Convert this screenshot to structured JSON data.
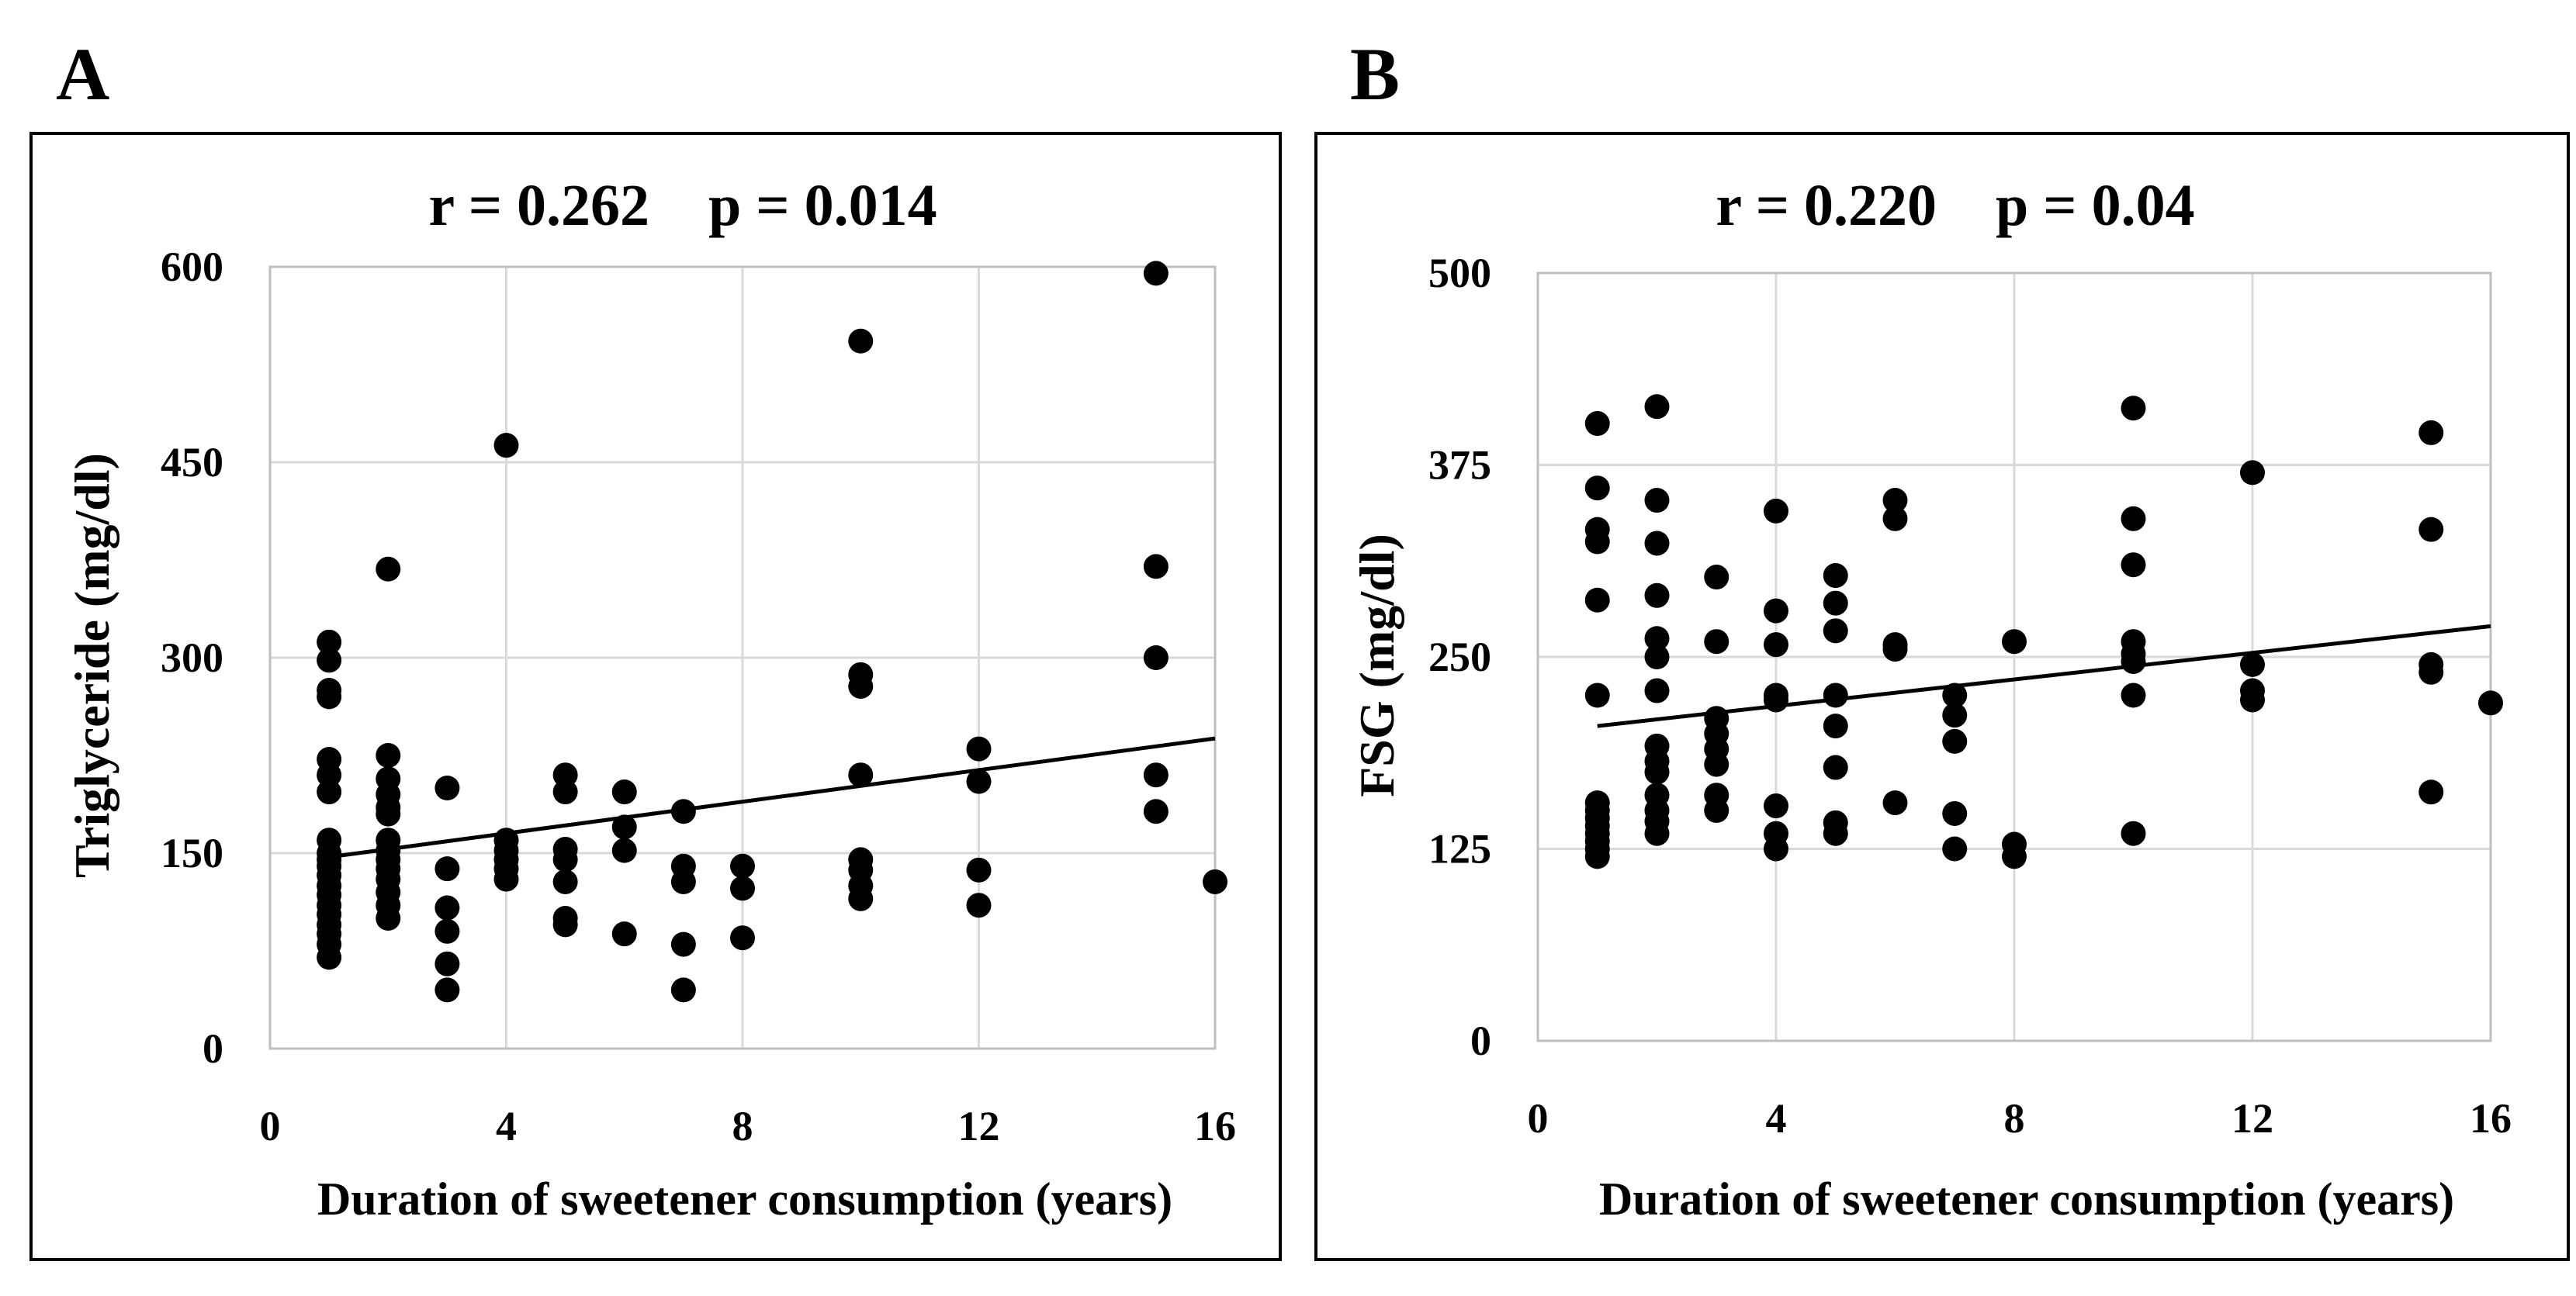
{
  "chart_data": [
    {
      "type": "scatter",
      "panel_label": "A",
      "title": "r = 0.262    p = 0.014",
      "xlabel": "Duration of sweetener consumption (years)",
      "ylabel": "Triglyceride (mg/dl)",
      "xlim": [
        0,
        16
      ],
      "ylim": [
        0,
        600
      ],
      "xticks": [
        0,
        4,
        8,
        12,
        16
      ],
      "yticks": [
        0,
        150,
        300,
        450,
        600
      ],
      "grid": true,
      "trendline": {
        "x": [
          1,
          16
        ],
        "y": [
          147,
          238
        ]
      },
      "points": [
        [
          1,
          312
        ],
        [
          1,
          298
        ],
        [
          1,
          275
        ],
        [
          1,
          270
        ],
        [
          1,
          222
        ],
        [
          1,
          210
        ],
        [
          1,
          197
        ],
        [
          1,
          160
        ],
        [
          1,
          150
        ],
        [
          1,
          145
        ],
        [
          1,
          140
        ],
        [
          1,
          133
        ],
        [
          1,
          125
        ],
        [
          1,
          118
        ],
        [
          1,
          110
        ],
        [
          1,
          103
        ],
        [
          1,
          95
        ],
        [
          1,
          88
        ],
        [
          1,
          80
        ],
        [
          1,
          70
        ],
        [
          2,
          368
        ],
        [
          2,
          225
        ],
        [
          2,
          207
        ],
        [
          2,
          195
        ],
        [
          2,
          185
        ],
        [
          2,
          180
        ],
        [
          2,
          160
        ],
        [
          2,
          152
        ],
        [
          2,
          145
        ],
        [
          2,
          138
        ],
        [
          2,
          130
        ],
        [
          2,
          120
        ],
        [
          2,
          110
        ],
        [
          2,
          100
        ],
        [
          3,
          200
        ],
        [
          3,
          138
        ],
        [
          3,
          108
        ],
        [
          3,
          90
        ],
        [
          3,
          65
        ],
        [
          3,
          45
        ],
        [
          4,
          463
        ],
        [
          4,
          160
        ],
        [
          4,
          152
        ],
        [
          4,
          145
        ],
        [
          4,
          138
        ],
        [
          4,
          130
        ],
        [
          5,
          210
        ],
        [
          5,
          197
        ],
        [
          5,
          153
        ],
        [
          5,
          145
        ],
        [
          5,
          128
        ],
        [
          5,
          100
        ],
        [
          5,
          95
        ],
        [
          6,
          197
        ],
        [
          6,
          170
        ],
        [
          6,
          152
        ],
        [
          6,
          88
        ],
        [
          7,
          182
        ],
        [
          7,
          140
        ],
        [
          7,
          128
        ],
        [
          7,
          80
        ],
        [
          7,
          45
        ],
        [
          8,
          140
        ],
        [
          8,
          123
        ],
        [
          8,
          85
        ],
        [
          10,
          543
        ],
        [
          10,
          287
        ],
        [
          10,
          278
        ],
        [
          10,
          210
        ],
        [
          10,
          145
        ],
        [
          10,
          137
        ],
        [
          10,
          125
        ],
        [
          10,
          115
        ],
        [
          12,
          230
        ],
        [
          12,
          205
        ],
        [
          12,
          137
        ],
        [
          12,
          110
        ],
        [
          15,
          595
        ],
        [
          15,
          370
        ],
        [
          15,
          300
        ],
        [
          15,
          210
        ],
        [
          15,
          182
        ],
        [
          16,
          128
        ]
      ]
    },
    {
      "type": "scatter",
      "panel_label": "B",
      "title": "r = 0.220    p = 0.04",
      "xlabel": "Duration of sweetener consumption (years)",
      "ylabel": "FSG (mg/dl)",
      "xlim": [
        0,
        16
      ],
      "ylim": [
        0,
        500
      ],
      "xticks": [
        0,
        4,
        8,
        12,
        16
      ],
      "yticks": [
        0,
        125,
        250,
        375,
        500
      ],
      "grid": true,
      "trendline": {
        "x": [
          1,
          16
        ],
        "y": [
          205,
          270
        ]
      },
      "points": [
        [
          1,
          402
        ],
        [
          1,
          360
        ],
        [
          1,
          333
        ],
        [
          1,
          325
        ],
        [
          1,
          287
        ],
        [
          1,
          225
        ],
        [
          1,
          155
        ],
        [
          1,
          150
        ],
        [
          1,
          145
        ],
        [
          1,
          140
        ],
        [
          1,
          135
        ],
        [
          1,
          130
        ],
        [
          1,
          125
        ],
        [
          1,
          120
        ],
        [
          2,
          413
        ],
        [
          2,
          352
        ],
        [
          2,
          324
        ],
        [
          2,
          290
        ],
        [
          2,
          262
        ],
        [
          2,
          250
        ],
        [
          2,
          228
        ],
        [
          2,
          192
        ],
        [
          2,
          182
        ],
        [
          2,
          175
        ],
        [
          2,
          160
        ],
        [
          2,
          150
        ],
        [
          2,
          143
        ],
        [
          2,
          135
        ],
        [
          3,
          302
        ],
        [
          3,
          260
        ],
        [
          3,
          210
        ],
        [
          3,
          200
        ],
        [
          3,
          190
        ],
        [
          3,
          180
        ],
        [
          3,
          160
        ],
        [
          3,
          150
        ],
        [
          4,
          345
        ],
        [
          4,
          280
        ],
        [
          4,
          258
        ],
        [
          4,
          225
        ],
        [
          4,
          222
        ],
        [
          4,
          153
        ],
        [
          4,
          135
        ],
        [
          4,
          125
        ],
        [
          5,
          303
        ],
        [
          5,
          285
        ],
        [
          5,
          267
        ],
        [
          5,
          225
        ],
        [
          5,
          205
        ],
        [
          5,
          178
        ],
        [
          5,
          142
        ],
        [
          5,
          135
        ],
        [
          6,
          352
        ],
        [
          6,
          340
        ],
        [
          6,
          258
        ],
        [
          6,
          255
        ],
        [
          6,
          155
        ],
        [
          7,
          225
        ],
        [
          7,
          212
        ],
        [
          7,
          195
        ],
        [
          7,
          148
        ],
        [
          7,
          125
        ],
        [
          8,
          260
        ],
        [
          8,
          128
        ],
        [
          8,
          120
        ],
        [
          10,
          412
        ],
        [
          10,
          340
        ],
        [
          10,
          310
        ],
        [
          10,
          260
        ],
        [
          10,
          252
        ],
        [
          10,
          247
        ],
        [
          10,
          225
        ],
        [
          10,
          135
        ],
        [
          12,
          370
        ],
        [
          12,
          245
        ],
        [
          12,
          228
        ],
        [
          12,
          222
        ],
        [
          15,
          396
        ],
        [
          15,
          333
        ],
        [
          15,
          245
        ],
        [
          15,
          240
        ],
        [
          15,
          162
        ],
        [
          16,
          220
        ]
      ]
    }
  ]
}
